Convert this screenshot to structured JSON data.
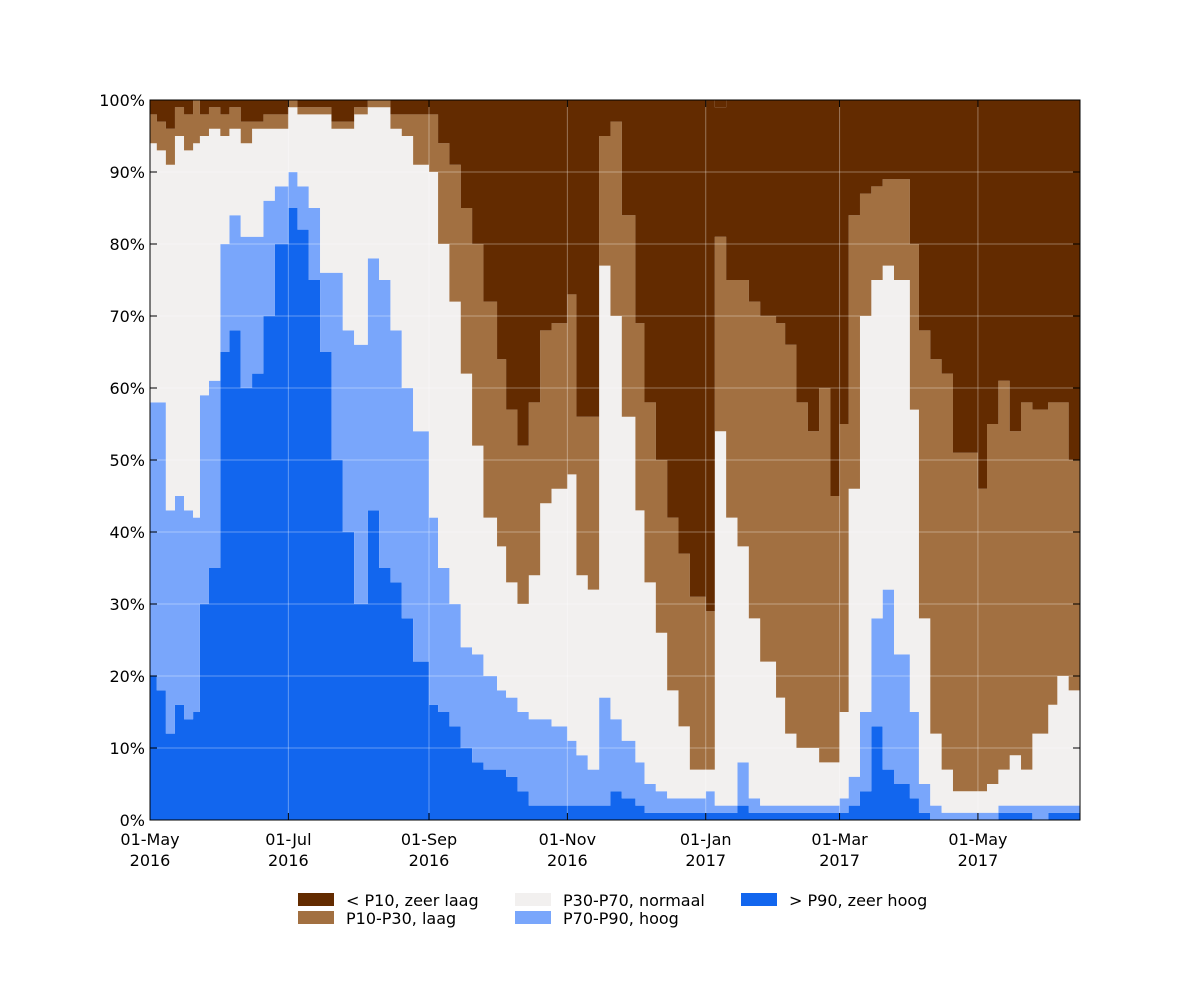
{
  "chart_data": {
    "type": "area",
    "stacked": true,
    "stack_percent": true,
    "title": "",
    "xlabel": "",
    "ylabel": "",
    "ylim": [
      0,
      100
    ],
    "y_ticks": [
      "0%",
      "10%",
      "20%",
      "30%",
      "40%",
      "50%",
      "60%",
      "70%",
      "80%",
      "90%",
      "100%"
    ],
    "y_tick_values": [
      0,
      10,
      20,
      30,
      40,
      50,
      60,
      70,
      80,
      90,
      100
    ],
    "x_range": [
      "2016-05-01",
      "2017-06-15"
    ],
    "x_ticks": [
      {
        "date": "2016-05-01",
        "line1": "01-May",
        "line2": "2016"
      },
      {
        "date": "2016-07-01",
        "line1": "01-Jul",
        "line2": "2016"
      },
      {
        "date": "2016-09-01",
        "line1": "01-Sep",
        "line2": "2016"
      },
      {
        "date": "2016-11-01",
        "line1": "01-Nov",
        "line2": "2016"
      },
      {
        "date": "2017-01-01",
        "line1": "01-Jan",
        "line2": "2017"
      },
      {
        "date": "2017-03-01",
        "line1": "01-Mar",
        "line2": "2017"
      },
      {
        "date": "2017-05-01",
        "line1": "01-May",
        "line2": "2017"
      }
    ],
    "grid": true,
    "legend_position": "bottom-center",
    "x": [
      "2016-05-01",
      "2016-05-04",
      "2016-05-08",
      "2016-05-12",
      "2016-05-16",
      "2016-05-20",
      "2016-05-23",
      "2016-05-27",
      "2016-06-01",
      "2016-06-05",
      "2016-06-10",
      "2016-06-15",
      "2016-06-20",
      "2016-06-25",
      "2016-07-01",
      "2016-07-05",
      "2016-07-10",
      "2016-07-15",
      "2016-07-20",
      "2016-07-25",
      "2016-07-30",
      "2016-08-05",
      "2016-08-10",
      "2016-08-15",
      "2016-08-20",
      "2016-08-25",
      "2016-09-01",
      "2016-09-05",
      "2016-09-10",
      "2016-09-15",
      "2016-09-20",
      "2016-09-25",
      "2016-10-01",
      "2016-10-05",
      "2016-10-10",
      "2016-10-15",
      "2016-10-20",
      "2016-10-25",
      "2016-11-01",
      "2016-11-05",
      "2016-11-10",
      "2016-11-15",
      "2016-11-20",
      "2016-11-25",
      "2016-12-01",
      "2016-12-05",
      "2016-12-10",
      "2016-12-15",
      "2016-12-20",
      "2016-12-25",
      "2017-01-01",
      "2017-01-05",
      "2017-01-10",
      "2017-01-15",
      "2017-01-20",
      "2017-01-25",
      "2017-02-01",
      "2017-02-05",
      "2017-02-10",
      "2017-02-15",
      "2017-02-20",
      "2017-02-25",
      "2017-03-01",
      "2017-03-05",
      "2017-03-10",
      "2017-03-15",
      "2017-03-20",
      "2017-03-25",
      "2017-04-01",
      "2017-04-05",
      "2017-04-10",
      "2017-04-15",
      "2017-04-20",
      "2017-04-25",
      "2017-05-01",
      "2017-05-05",
      "2017-05-10",
      "2017-05-15",
      "2017-05-20",
      "2017-05-25",
      "2017-06-01",
      "2017-06-05",
      "2017-06-10",
      "2017-06-15"
    ],
    "series": [
      {
        "name": "> P90, zeer hoog",
        "color": "#1266ee",
        "values": [
          20,
          18,
          12,
          16,
          14,
          15,
          30,
          35,
          65,
          68,
          60,
          62,
          70,
          80,
          85,
          82,
          75,
          65,
          50,
          40,
          30,
          43,
          35,
          33,
          28,
          22,
          16,
          15,
          13,
          10,
          8,
          7,
          7,
          6,
          4,
          2,
          2,
          2,
          2,
          2,
          2,
          2,
          4,
          3,
          2,
          1,
          1,
          1,
          1,
          1,
          1,
          1,
          1,
          2,
          1,
          1,
          1,
          1,
          1,
          1,
          1,
          1,
          1,
          2,
          4,
          13,
          7,
          5,
          3,
          1,
          0,
          0,
          0,
          0,
          0,
          0,
          1,
          1,
          1,
          0,
          1,
          1,
          1,
          1
        ]
      },
      {
        "name": "P70-P90, hoog",
        "color": "#79a6fb",
        "values": [
          38,
          40,
          31,
          29,
          29,
          27,
          29,
          26,
          15,
          16,
          21,
          19,
          16,
          8,
          5,
          6,
          10,
          11,
          26,
          28,
          36,
          35,
          40,
          35,
          32,
          32,
          26,
          20,
          17,
          14,
          15,
          13,
          11,
          11,
          11,
          12,
          12,
          11,
          9,
          7,
          5,
          15,
          10,
          8,
          6,
          4,
          3,
          2,
          2,
          2,
          3,
          1,
          1,
          6,
          2,
          1,
          1,
          1,
          1,
          1,
          1,
          1,
          2,
          4,
          11,
          15,
          25,
          18,
          12,
          4,
          2,
          1,
          1,
          1,
          1,
          1,
          1,
          1,
          1,
          2,
          1,
          1,
          1,
          1
        ]
      },
      {
        "name": "P30-P70, normaal",
        "color": "#f2f0ef",
        "values": [
          36,
          35,
          48,
          50,
          50,
          52,
          36,
          35,
          15,
          12,
          13,
          15,
          10,
          8,
          9,
          10,
          13,
          22,
          20,
          28,
          32,
          21,
          24,
          28,
          35,
          37,
          48,
          45,
          42,
          38,
          29,
          22,
          20,
          16,
          15,
          20,
          30,
          33,
          37,
          25,
          25,
          60,
          56,
          45,
          35,
          28,
          22,
          15,
          10,
          4,
          3,
          52,
          40,
          30,
          25,
          20,
          15,
          10,
          8,
          8,
          6,
          6,
          12,
          40,
          55,
          47,
          45,
          52,
          42,
          23,
          10,
          6,
          3,
          3,
          3,
          4,
          5,
          7,
          5,
          10,
          14,
          18,
          16,
          20
        ]
      },
      {
        "name": "P10-P30, laag",
        "color": "#a27041",
        "values": [
          4,
          4,
          5,
          4,
          5,
          6,
          3,
          3,
          3,
          3,
          3,
          1,
          2,
          2,
          1,
          1,
          1,
          1,
          1,
          1,
          1,
          1,
          1,
          2,
          3,
          7,
          8,
          14,
          19,
          23,
          28,
          30,
          26,
          24,
          22,
          24,
          24,
          23,
          25,
          22,
          24,
          18,
          27,
          28,
          26,
          25,
          24,
          24,
          24,
          24,
          22,
          27,
          33,
          37,
          44,
          48,
          52,
          54,
          48,
          44,
          52,
          37,
          40,
          38,
          17,
          13,
          12,
          14,
          23,
          40,
          52,
          55,
          47,
          47,
          42,
          50,
          54,
          45,
          51,
          45,
          42,
          38,
          32,
          30
        ]
      },
      {
        "name": "< P10, zeer laag",
        "color": "#632b00",
        "values": [
          2,
          3,
          4,
          1,
          2,
          0,
          2,
          1,
          2,
          1,
          3,
          3,
          2,
          2,
          0,
          1,
          1,
          1,
          3,
          3,
          1,
          0,
          0,
          2,
          2,
          2,
          2,
          6,
          9,
          15,
          20,
          28,
          36,
          43,
          48,
          42,
          32,
          31,
          27,
          44,
          44,
          5,
          3,
          16,
          31,
          42,
          50,
          58,
          63,
          69,
          71,
          18,
          25,
          25,
          28,
          30,
          31,
          34,
          42,
          46,
          40,
          55,
          45,
          16,
          13,
          12,
          11,
          11,
          20,
          32,
          36,
          38,
          49,
          49,
          54,
          45,
          39,
          46,
          42,
          43,
          42,
          42,
          50,
          48
        ]
      }
    ]
  }
}
